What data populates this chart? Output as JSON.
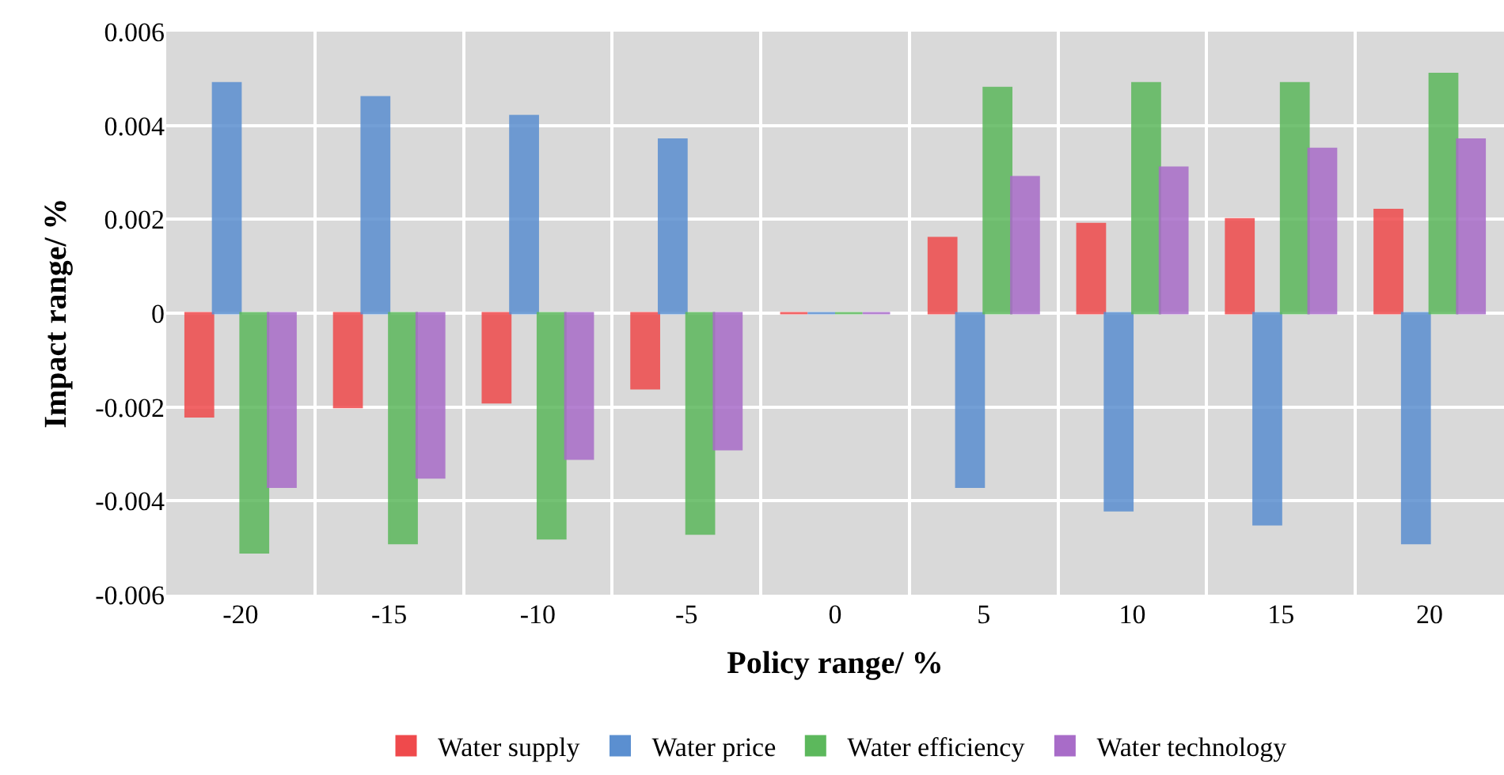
{
  "chart_data": {
    "type": "bar",
    "xlabel": "Policy range/ %",
    "ylabel": "Impact range/ %",
    "categories": [
      "-20",
      "-15",
      "-10",
      "-5",
      "0",
      "5",
      "10",
      "15",
      "20"
    ],
    "series": [
      {
        "name": "Water supply",
        "color": "#ef4a4c",
        "values": [
          -0.0022,
          -0.002,
          -0.0019,
          -0.0016,
          0,
          0.0016,
          0.0019,
          0.002,
          0.0022
        ]
      },
      {
        "name": "Water price",
        "color": "#5b8fd0",
        "values": [
          0.0049,
          0.0046,
          0.0042,
          0.0037,
          0,
          -0.0037,
          -0.0042,
          -0.0045,
          -0.0049
        ]
      },
      {
        "name": "Water efficiency",
        "color": "#5cb85c",
        "values": [
          -0.0051,
          -0.0049,
          -0.0048,
          -0.0047,
          0,
          0.0048,
          0.0049,
          0.0049,
          0.0051
        ]
      },
      {
        "name": "Water technology",
        "color": "#a86cc8",
        "values": [
          -0.0037,
          -0.0035,
          -0.0031,
          -0.0029,
          0,
          0.0029,
          0.0031,
          0.0035,
          0.0037
        ]
      }
    ],
    "ylim": [
      -0.006,
      0.006
    ],
    "yticks": [
      -0.006,
      -0.004,
      -0.002,
      0,
      0.002,
      0.004,
      0.006
    ],
    "grid": true,
    "legend": "bottom"
  }
}
